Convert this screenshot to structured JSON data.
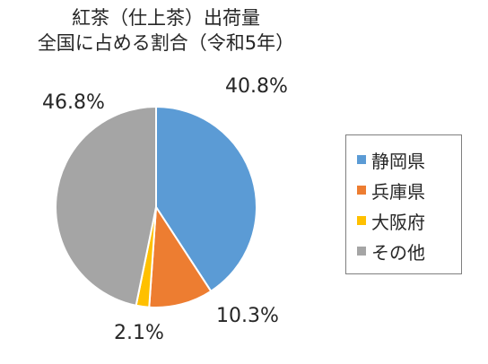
{
  "chart_data": {
    "type": "pie",
    "title_lines": [
      "紅茶（仕上茶）出荷量",
      "全国に占める割合（令和5年）"
    ],
    "categories": [
      "静岡県",
      "兵庫県",
      "大阪府",
      "その他"
    ],
    "values": [
      40.8,
      10.3,
      2.1,
      46.8
    ],
    "data_labels": [
      "40.8%",
      "10.3%",
      "2.1%",
      "46.8%"
    ],
    "colors": [
      "#5B9BD5",
      "#ED7D31",
      "#FFC000",
      "#A5A5A5"
    ],
    "start_angle": "12 o'clock",
    "direction": "clockwise",
    "legend_position": "right"
  }
}
